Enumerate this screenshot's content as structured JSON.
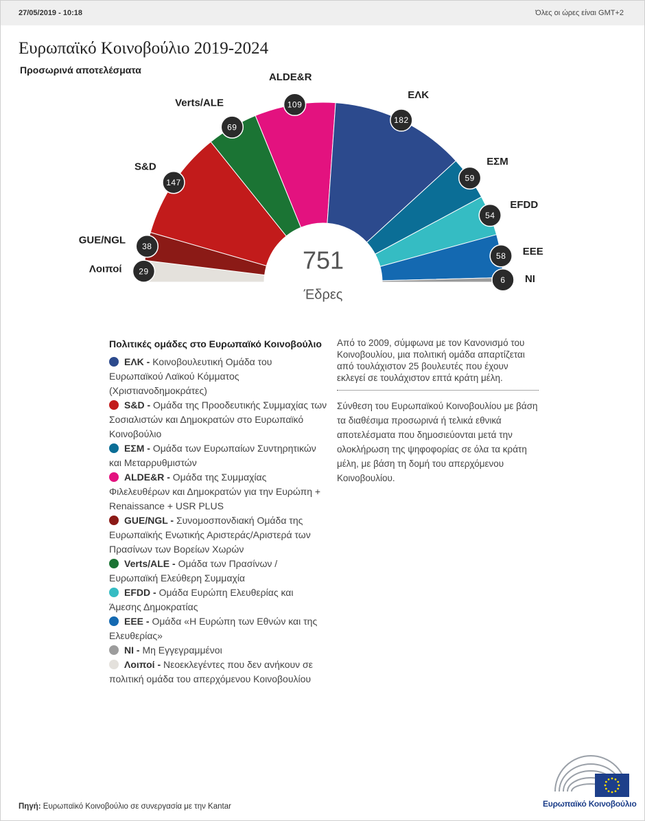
{
  "header": {
    "timestamp": "27/05/2019 - 10:18",
    "timezone": "Όλες οι ώρες είναι GMT+2"
  },
  "chart_data": {
    "type": "hemicycle",
    "title": "Ευρωπαϊκό Κοινοβούλιο 2019-2024",
    "subtitle": "Προσωρινά αποτελέσματα",
    "categories": [
      "Λοιποί",
      "GUE/NGL",
      "S&D",
      "Verts/ALE",
      "ALDE&R",
      "ΕΛΚ",
      "ΕΣΜ",
      "EFDD",
      "EEE",
      "NI"
    ],
    "values": [
      29,
      38,
      147,
      69,
      109,
      182,
      59,
      54,
      58,
      6
    ],
    "colors": [
      "#e4e1dc",
      "#8b1a16",
      "#c21b1b",
      "#1b7434",
      "#e3127f",
      "#2c4a8d",
      "#0b6e96",
      "#35bcc3",
      "#1469b1",
      "#9c9c9c"
    ],
    "total": 751,
    "total_label": "Έδρες"
  },
  "legend": {
    "title": "Πολιτικές ομάδες στο Ευρωπαϊκό Κοινοβούλιο",
    "items": [
      {
        "label": "ΕΛΚ -",
        "text": "Κοινοβουλευτική Ομάδα του Ευρωπαϊκού Λαϊκού Κόμματος (Χριστιανοδημοκράτες)",
        "color": "#2c4a8d"
      },
      {
        "label": "S&D -",
        "text": "Ομάδα της Προοδευτικής Συμμαχίας των Σοσιαλιστών και Δημοκρατών στο Ευρωπαϊκό Κοινοβούλιο",
        "color": "#c21b1b"
      },
      {
        "label": "ΕΣΜ -",
        "text": "Ομάδα των Ευρωπαίων Συντηρητικών και Μεταρρυθμιστών",
        "color": "#0b6e96"
      },
      {
        "label": "ALDE&R -",
        "text": "Ομάδα της Συμμαχίας Φιλελευθέρων και Δημοκρατών για την Ευρώπη + Renaissance + USR PLUS",
        "color": "#e3127f"
      },
      {
        "label": "GUE/NGL -",
        "text": "Συνομοσπονδιακή Ομάδα της Ευρωπαϊκής Ενωτικής Αριστεράς/Αριστερά των Πρασίνων των Βορείων Χωρών",
        "color": "#8b1a16"
      },
      {
        "label": "Verts/ALE -",
        "text": "Ομάδα των Πρασίνων / Ευρωπαϊκή Ελεύθερη Συμμαχία",
        "color": "#1b7434"
      },
      {
        "label": "EFDD -",
        "text": "Ομάδα Ευρώπη Ελευθερίας και Άμεσης Δημοκρατίας",
        "color": "#35bcc3"
      },
      {
        "label": "EEE -",
        "text": "Ομάδα «Η Ευρώπη των Εθνών και της Ελευθερίας»",
        "color": "#1469b1"
      },
      {
        "label": "NI -",
        "text": "Μη Εγγεγραμμένοι",
        "color": "#9c9c9c"
      },
      {
        "label": "Λοιποί -",
        "text": "Νεοεκλεγέντες που δεν ανήκουν σε πολιτική ομάδα του απερχόμενου Κοινοβουλίου",
        "color": "#e4e1dc"
      }
    ]
  },
  "notes": [
    "Από το 2009, σύμφωνα με τον Κανονισμό του Κοινοβουλίου, μια πολιτική ομάδα απαρτίζεται από τουλάχιστον 25 βουλευτές που έχουν εκλεγεί σε τουλάχιστον επτά κράτη μέλη.",
    "Σύνθεση του Ευρωπαϊκού Κοινοβουλίου με βάση τα διαθέσιμα προσωρινά ή τελικά εθνικά αποτελέσματα που δημοσιεύονται μετά την ολοκλήρωση της ψηφοφορίας σε όλα τα κράτη μέλη, με βάση τη δομή του απερχόμενου Κοινοβουλίου."
  ],
  "source": {
    "label": "Πηγή:",
    "text": "Ευρωπαϊκό Κοινοβούλιο σε συνεργασία με την Kantar"
  },
  "logo": {
    "text": "Ευρωπαϊκό Κοινοβούλιο"
  }
}
